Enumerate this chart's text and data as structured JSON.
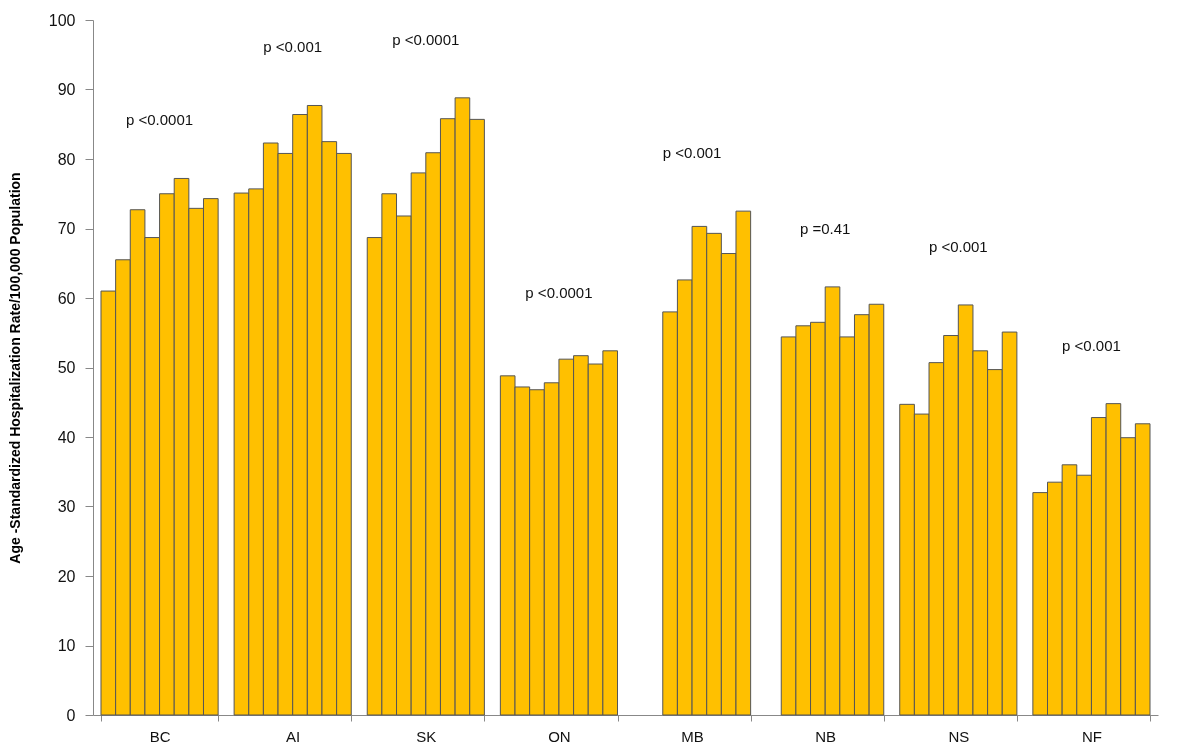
{
  "chart_data": {
    "type": "bar",
    "ylabel": "Age -Standardized Hospitalization Rate/100,000 Population",
    "categories": [
      "BC",
      "AI",
      "SK",
      "ON",
      "MB",
      "NB",
      "NS",
      "NF"
    ],
    "series": [
      {
        "color": "#ffc000",
        "values": [
          61.0,
          75.1,
          68.7,
          48.8,
          null,
          null,
          44.7,
          32.0
        ]
      },
      {
        "color": "#ffc000",
        "values": [
          65.5,
          75.7,
          75.0,
          47.2,
          null,
          54.4,
          43.3,
          33.5
        ]
      },
      {
        "color": "#ffc000",
        "values": [
          72.7,
          82.3,
          71.8,
          46.8,
          58.0,
          56.0,
          50.7,
          36.0
        ]
      },
      {
        "color": "#ffc000",
        "values": [
          68.7,
          80.8,
          78.0,
          47.8,
          62.6,
          56.5,
          54.6,
          34.5
        ]
      },
      {
        "color": "#ffc000",
        "values": [
          75.0,
          86.4,
          80.9,
          51.2,
          70.3,
          61.6,
          59.0,
          42.8
        ]
      },
      {
        "color": "#ffc000",
        "values": [
          77.2,
          87.7,
          85.8,
          51.7,
          69.3,
          54.4,
          52.4,
          44.8
        ]
      },
      {
        "color": "#ffc000",
        "values": [
          72.9,
          82.5,
          88.8,
          50.5,
          66.4,
          57.6,
          49.7,
          39.9
        ]
      },
      {
        "color": "#ffc000",
        "values": [
          74.3,
          80.8,
          85.7,
          52.4,
          72.5,
          59.1,
          55.1,
          41.9
        ]
      }
    ],
    "ylim": [
      0,
      100
    ],
    "yticks": [
      0,
      10,
      20,
      30,
      40,
      50,
      60,
      70,
      80,
      90,
      100
    ],
    "grid": false,
    "legend": false,
    "annotations": [
      "p <0.0001",
      "p <0.001",
      "p <0.0001",
      "p <0.0001",
      "p <0.001",
      "p =0.41",
      "p <0.001",
      "p <0.001"
    ]
  }
}
